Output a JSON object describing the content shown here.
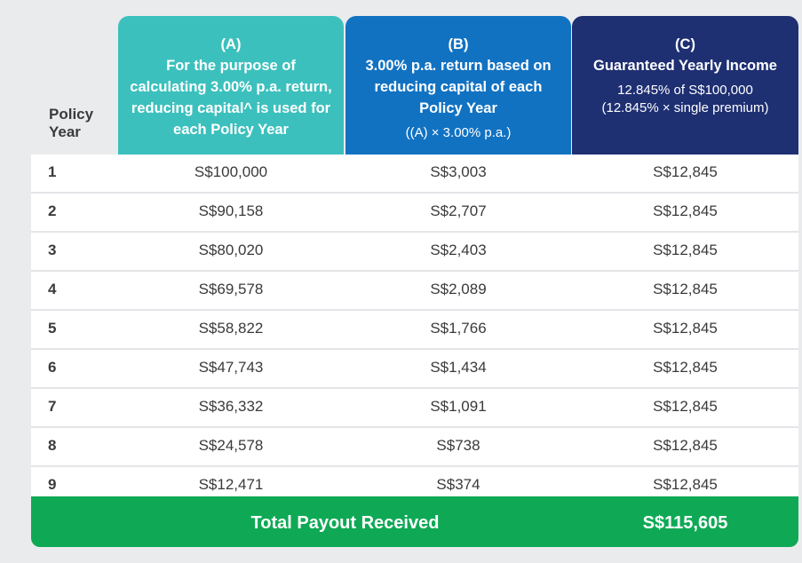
{
  "header": {
    "policy_year": "Policy Year",
    "col_a": {
      "letter": "(A)",
      "lines": [
        "For the purpose of",
        "calculating 3.00% p.a. return,",
        "reducing capital^ is used for",
        "each Policy Year"
      ]
    },
    "col_b": {
      "letter": "(B)",
      "lines": [
        "3.00% p.a. return based on",
        "reducing capital of each",
        "Policy Year"
      ],
      "formula": "((A) × 3.00% p.a.)"
    },
    "col_c": {
      "letter": "(C)",
      "title": "Guaranteed Yearly Income",
      "line1": "12.845% of S$100,000",
      "line2": "(12.845% × single premium)"
    }
  },
  "rows": [
    {
      "year": "1",
      "a": "S$100,000",
      "b": "S$3,003",
      "c": "S$12,845"
    },
    {
      "year": "2",
      "a": "S$90,158",
      "b": "S$2,707",
      "c": "S$12,845"
    },
    {
      "year": "3",
      "a": "S$80,020",
      "b": "S$2,403",
      "c": "S$12,845"
    },
    {
      "year": "4",
      "a": "S$69,578",
      "b": "S$2,089",
      "c": "S$12,845"
    },
    {
      "year": "5",
      "a": "S$58,822",
      "b": "S$1,766",
      "c": "S$12,845"
    },
    {
      "year": "6",
      "a": "S$47,743",
      "b": "S$1,434",
      "c": "S$12,845"
    },
    {
      "year": "7",
      "a": "S$36,332",
      "b": "S$1,091",
      "c": "S$12,845"
    },
    {
      "year": "8",
      "a": "S$24,578",
      "b": "S$738",
      "c": "S$12,845"
    },
    {
      "year": "9",
      "a": "S$12,471",
      "b": "S$374",
      "c": "S$12,845"
    }
  ],
  "total": {
    "label": "Total Payout Received",
    "value": "S$115,605"
  },
  "colors": {
    "col_a": "#3cc0bd",
    "col_b": "#1272c2",
    "col_c": "#1e2f72",
    "total": "#0fa955"
  }
}
